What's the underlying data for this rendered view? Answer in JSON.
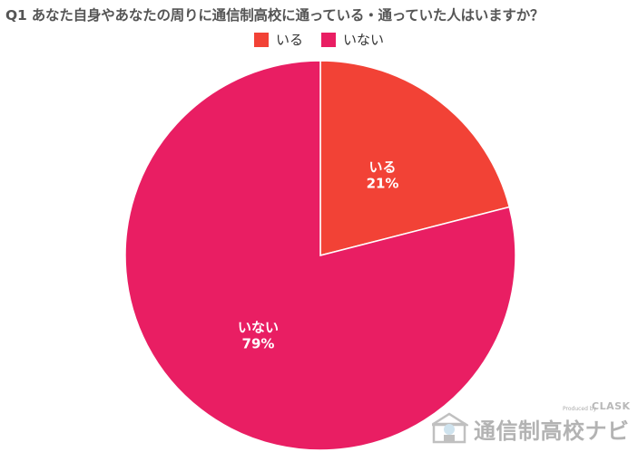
{
  "chart_data": {
    "type": "pie",
    "title": "Q1 あなた自身やあなたの周りに通信制高校に通っている・通っていた人はいますか？",
    "legend_position": "top",
    "slices": [
      {
        "label": "いる",
        "value": 21,
        "value_label": "21%",
        "color": "#f24236"
      },
      {
        "label": "いない",
        "value": 79,
        "value_label": "79%",
        "color": "#e91e63"
      }
    ]
  },
  "watermark": {
    "text": "通信制高校ナビ",
    "credit": "Produced by",
    "brand": "CLASK",
    "logo_icon": "school-house-icon"
  }
}
